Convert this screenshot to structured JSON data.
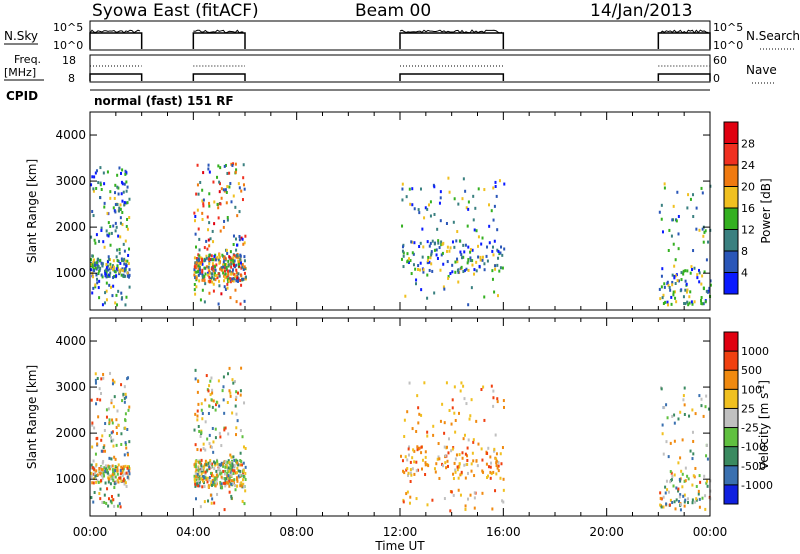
{
  "header": {
    "station": "Syowa East (fitACF)",
    "beam": "Beam 00",
    "date": "14/Jan/2013"
  },
  "top_panels": {
    "nsky_label": "N.Sky",
    "nsky_ticks": [
      "10^5",
      "10^0"
    ],
    "nsearch_label": "N.Search",
    "nsearch_ticks": [
      "10^5",
      "10^0"
    ],
    "freq_label_1": "Freq.",
    "freq_label_2": "[MHz]",
    "freq_ticks": [
      "18",
      "8"
    ],
    "nave_label": "Nave",
    "nave_ticks": [
      "60",
      "0"
    ],
    "cpid_label": "CPID",
    "cpid_text": "normal (fast) 151 RF"
  },
  "chart_data": [
    {
      "type": "heatmap",
      "name": "power",
      "ylabel": "Slant Range [km]",
      "yticks": [
        "1000",
        "2000",
        "3000",
        "4000"
      ],
      "ylim": [
        200,
        4500
      ],
      "colorbar_label": "Power [dB]",
      "colorbar_ticks": [
        "4",
        "8",
        "12",
        "16",
        "20",
        "24",
        "28"
      ],
      "colors": [
        "#0a1aff",
        "#2a56b8",
        "#3a8080",
        "#34b020",
        "#f0c020",
        "#f07a10",
        "#f03020",
        "#e00010"
      ],
      "xticks": [
        "00:00",
        "04:00",
        "08:00",
        "12:00",
        "16:00",
        "20:00",
        "00:00"
      ],
      "data_windows_ut_hours": [
        [
          0,
          2
        ],
        [
          4,
          6
        ],
        [
          12,
          16
        ],
        [
          22,
          24
        ]
      ]
    },
    {
      "type": "heatmap",
      "name": "velocity",
      "ylabel": "Slant Range [km]",
      "yticks": [
        "1000",
        "2000",
        "3000",
        "4000"
      ],
      "ylim": [
        200,
        4500
      ],
      "colorbar_label": "Velocity [m s",
      "colorbar_label_sup": "-1",
      "colorbar_label_end": "]",
      "colorbar_ticks": [
        "1000",
        "500",
        "100",
        "25",
        "-25",
        "-100",
        "-500",
        "-1000"
      ],
      "colors": [
        "#1020e0",
        "#3a70b0",
        "#3a8a60",
        "#60c040",
        "#c0c0c0",
        "#f0c020",
        "#f08a10",
        "#f04010",
        "#e00010"
      ],
      "xticks": [
        "00:00",
        "04:00",
        "08:00",
        "12:00",
        "16:00",
        "20:00",
        "00:00"
      ],
      "xlabel": "Time UT",
      "data_windows_ut_hours": [
        [
          0,
          2
        ],
        [
          4,
          6
        ],
        [
          12,
          16
        ],
        [
          22,
          24
        ]
      ]
    }
  ]
}
